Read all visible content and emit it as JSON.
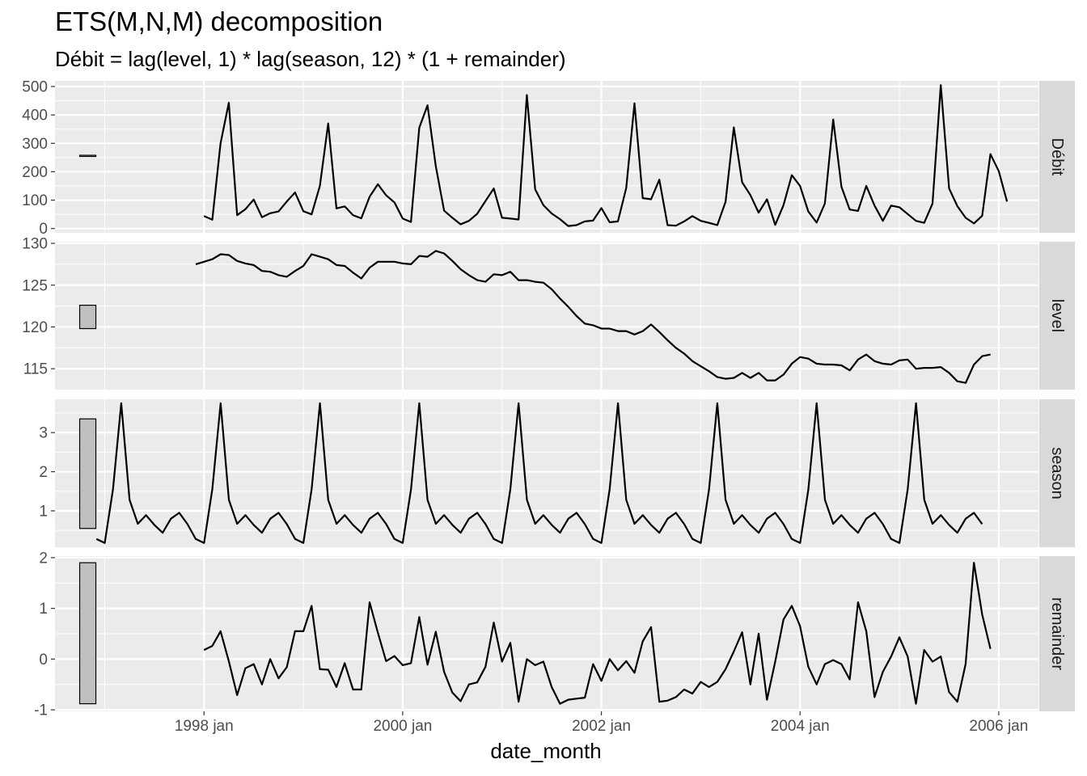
{
  "title": "ETS(M,N,M) decomposition",
  "subtitle": "Débit = lag(level, 1) * lag(season, 12) * (1 + remainder)",
  "chart_data": {
    "type": "line",
    "xlabel": "date_month",
    "x_ticks": [
      "1998 jan",
      "2000 jan",
      "2002 jan",
      "2004 jan",
      "2006 jan"
    ],
    "x_tick_values": [
      1998.0,
      2000.0,
      2002.0,
      2004.0,
      2006.0
    ],
    "xlim": [
      1996.5,
      2006.4
    ],
    "grid": true,
    "facet_bar": {
      "note": "scale bars on left of each panel",
      "x": 1996.83
    },
    "panels": [
      {
        "name": "Débit",
        "ylim": [
          -15,
          520
        ],
        "y_ticks": [
          0,
          100,
          200,
          300,
          400,
          500
        ],
        "scale_bar": [
          255,
          258
        ],
        "start": 1998.0,
        "values": [
          44,
          31,
          300,
          443,
          47,
          68,
          102,
          40,
          54,
          60,
          95,
          127,
          61,
          50,
          150,
          370,
          71,
          78,
          47,
          36,
          112,
          156,
          117,
          92,
          35,
          23,
          355,
          434,
          220,
          63,
          38,
          15,
          27,
          52,
          97,
          141,
          38,
          35,
          32,
          470,
          138,
          82,
          53,
          33,
          9,
          12,
          25,
          28,
          72,
          22,
          25,
          143,
          441,
          107,
          103,
          172,
          12,
          10,
          25,
          44,
          27,
          20,
          12,
          94,
          356,
          163,
          118,
          56,
          103,
          13,
          82,
          188,
          150,
          60,
          21,
          88,
          384,
          147,
          67,
          62,
          150,
          81,
          27,
          81,
          75,
          51,
          27,
          20,
          88,
          505,
          141,
          79,
          38,
          18,
          45,
          262,
          202,
          95
        ]
      },
      {
        "name": "level",
        "ylim": [
          112.5,
          130.2
        ],
        "y_ticks": [
          115,
          120,
          125,
          130
        ],
        "scale_bar": [
          119.8,
          122.6
        ],
        "start": 1997.917,
        "values": [
          127.5,
          127.8,
          128.1,
          128.7,
          128.6,
          127.9,
          127.6,
          127.4,
          126.7,
          126.6,
          126.2,
          126.0,
          126.7,
          127.3,
          128.7,
          128.4,
          128.1,
          127.4,
          127.3,
          126.5,
          125.8,
          127.1,
          127.8,
          127.8,
          127.8,
          127.6,
          127.5,
          128.5,
          128.4,
          129.1,
          128.8,
          127.9,
          126.9,
          126.2,
          125.6,
          125.4,
          126.3,
          126.2,
          126.6,
          125.6,
          125.6,
          125.4,
          125.3,
          124.5,
          123.4,
          122.4,
          121.3,
          120.4,
          120.2,
          119.8,
          119.8,
          119.5,
          119.5,
          119.1,
          119.5,
          120.3,
          119.4,
          118.4,
          117.5,
          116.8,
          115.9,
          115.3,
          114.7,
          114.0,
          113.8,
          113.9,
          114.5,
          113.9,
          114.5,
          113.6,
          113.6,
          114.3,
          115.6,
          116.4,
          116.2,
          115.6,
          115.5,
          115.5,
          115.4,
          114.8,
          116.1,
          116.7,
          115.9,
          115.6,
          115.5,
          116.0,
          116.1,
          115.0,
          115.1,
          115.1,
          115.2,
          114.5,
          113.5,
          113.3,
          115.5,
          116.5,
          116.7
        ]
      },
      {
        "name": "season",
        "ylim": [
          0.07,
          3.85
        ],
        "y_ticks": [
          1,
          2,
          3
        ],
        "scale_bar": [
          0.55,
          3.35
        ],
        "start": 1996.917,
        "values": [
          0.28,
          0.18,
          1.55,
          3.75,
          1.28,
          0.67,
          0.89,
          0.64,
          0.44,
          0.8,
          0.95,
          0.66,
          0.28,
          0.18,
          1.55,
          3.75,
          1.28,
          0.67,
          0.89,
          0.64,
          0.44,
          0.8,
          0.95,
          0.66,
          0.28,
          0.18,
          1.55,
          3.75,
          1.28,
          0.67,
          0.89,
          0.64,
          0.44,
          0.8,
          0.95,
          0.66,
          0.28,
          0.18,
          1.55,
          3.75,
          1.28,
          0.67,
          0.89,
          0.64,
          0.44,
          0.8,
          0.95,
          0.66,
          0.28,
          0.18,
          1.55,
          3.75,
          1.28,
          0.67,
          0.89,
          0.64,
          0.44,
          0.8,
          0.95,
          0.66,
          0.28,
          0.18,
          1.55,
          3.75,
          1.28,
          0.67,
          0.89,
          0.64,
          0.44,
          0.8,
          0.95,
          0.66,
          0.28,
          0.18,
          1.55,
          3.75,
          1.28,
          0.67,
          0.89,
          0.64,
          0.44,
          0.8,
          0.95,
          0.66,
          0.28,
          0.18,
          1.55,
          3.75,
          1.28,
          0.67,
          0.89,
          0.64,
          0.44,
          0.8,
          0.95,
          0.66,
          0.28,
          0.18,
          1.55,
          3.75,
          1.28,
          0.67,
          0.89,
          0.64,
          0.44,
          0.8,
          0.95,
          0.66
        ]
      },
      {
        "name": "remainder",
        "ylim": [
          -1.03,
          2.03
        ],
        "y_ticks": [
          -1,
          0,
          1,
          2
        ],
        "scale_bar": [
          -0.88,
          1.9
        ],
        "start": 1998.0,
        "values": [
          0.18,
          0.26,
          0.55,
          -0.04,
          -0.71,
          -0.18,
          -0.1,
          -0.5,
          0.0,
          -0.38,
          -0.16,
          0.55,
          0.55,
          1.05,
          -0.2,
          -0.21,
          -0.55,
          -0.08,
          -0.6,
          -0.6,
          1.12,
          0.52,
          -0.04,
          0.06,
          -0.12,
          -0.08,
          0.83,
          -0.11,
          0.54,
          -0.25,
          -0.66,
          -0.83,
          -0.5,
          -0.46,
          -0.15,
          0.72,
          -0.05,
          0.32,
          -0.84,
          0.0,
          -0.12,
          -0.05,
          -0.55,
          -0.88,
          -0.8,
          -0.78,
          -0.76,
          -0.1,
          -0.43,
          0.0,
          -0.22,
          -0.04,
          -0.27,
          0.35,
          0.63,
          -0.84,
          -0.82,
          -0.75,
          -0.6,
          -0.68,
          -0.45,
          -0.55,
          -0.45,
          -0.2,
          0.15,
          0.53,
          -0.5,
          0.5,
          -0.8,
          -0.05,
          0.78,
          1.05,
          0.65,
          -0.15,
          -0.5,
          -0.1,
          -0.02,
          -0.1,
          -0.4,
          1.12,
          0.55,
          -0.75,
          -0.25,
          0.05,
          0.43,
          0.05,
          -0.88,
          0.18,
          -0.05,
          0.05,
          -0.65,
          -0.84,
          -0.1,
          1.9,
          0.88,
          0.2
        ]
      }
    ]
  }
}
